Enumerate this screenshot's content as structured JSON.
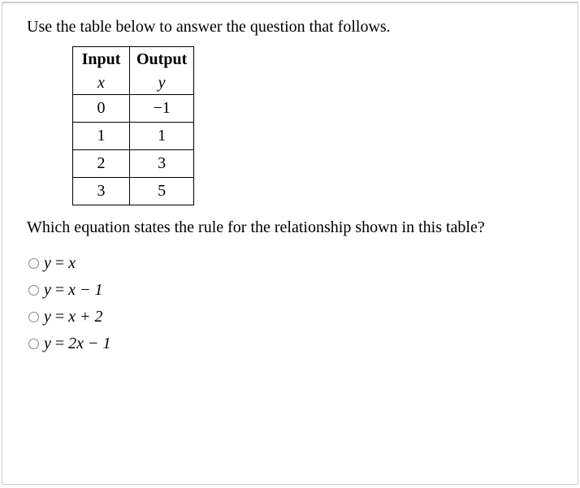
{
  "intro_text": "Use the table below to answer the question that follows.",
  "table": {
    "headers": [
      "Input",
      "Output"
    ],
    "subheaders": [
      "x",
      "y"
    ],
    "rows": [
      [
        "0",
        "−1"
      ],
      [
        "1",
        "1"
      ],
      [
        "2",
        "3"
      ],
      [
        "3",
        "5"
      ]
    ]
  },
  "question_text": "Which equation states the rule for the relationship shown in this table?",
  "options": [
    {
      "y": "y",
      "eq": " = ",
      "rhs": "x"
    },
    {
      "y": "y",
      "eq": " = ",
      "rhs": "x − 1"
    },
    {
      "y": "y",
      "eq": " = ",
      "rhs": "x + 2"
    },
    {
      "y": "y",
      "eq": " = ",
      "rhs": "2x − 1"
    }
  ],
  "colors": {
    "border": "#cccccc",
    "text": "#000000",
    "radio_border": "#888888",
    "background": "#ffffff"
  },
  "fonts": {
    "body_size": 20,
    "family": "Georgia, Times New Roman, serif"
  }
}
